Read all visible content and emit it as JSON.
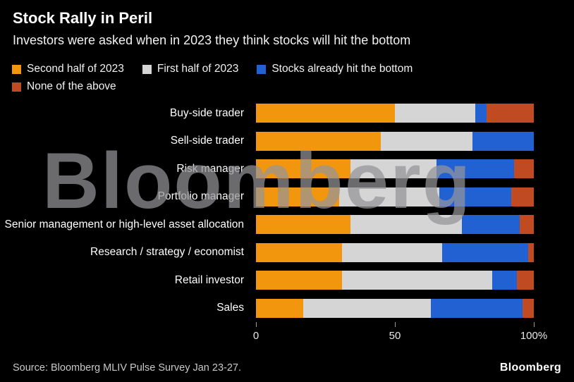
{
  "header": {
    "title": "Stock Rally in Peril",
    "subtitle": "Investors were asked when in 2023 they think stocks will hit the bottom"
  },
  "legend": [
    {
      "label": "Second half of 2023",
      "color": "#F2960D"
    },
    {
      "label": "First half of 2023",
      "color": "#D5D5D5"
    },
    {
      "label": "Stocks already hit the bottom",
      "color": "#2161D2"
    },
    {
      "label": "None of the above",
      "color": "#C04A22"
    }
  ],
  "chart_data": {
    "type": "bar",
    "orientation": "horizontal",
    "stacked": true,
    "title": "Stock Rally in Peril",
    "subtitle": "Investors were asked when in 2023 they think stocks will hit the bottom",
    "xlim": [
      0,
      100
    ],
    "grid": false,
    "legend_position": "top",
    "categories": [
      "Buy-side trader",
      "Sell-side trader",
      "Risk manager",
      "Portfolio manager",
      "Senior management or high-level asset allocation",
      "Research / strategy / economist",
      "Retail investor",
      "Sales"
    ],
    "series": [
      {
        "name": "Second half of 2023",
        "color": "#F2960D",
        "values": [
          50,
          45,
          34,
          30,
          34,
          31,
          31,
          17
        ]
      },
      {
        "name": "First half of 2023",
        "color": "#D5D5D5",
        "values": [
          29,
          33,
          31,
          36,
          40,
          36,
          54,
          46
        ]
      },
      {
        "name": "Stocks already hit the bottom",
        "color": "#2161D2",
        "values": [
          4,
          22,
          28,
          26,
          21,
          31,
          9,
          33
        ]
      },
      {
        "name": "None of the above",
        "color": "#C04A22",
        "values": [
          17,
          0,
          7,
          8,
          5,
          2,
          6,
          4
        ]
      }
    ]
  },
  "axis": {
    "ticks": [
      {
        "label": "0",
        "pos": 0
      },
      {
        "label": "50",
        "pos": 50
      },
      {
        "label": "100%",
        "pos": 100
      }
    ]
  },
  "watermark": "Bloomberg",
  "footer": {
    "source": "Source: Bloomberg MLIV Pulse Survey Jan 23-27.",
    "logo": "Bloomberg"
  }
}
